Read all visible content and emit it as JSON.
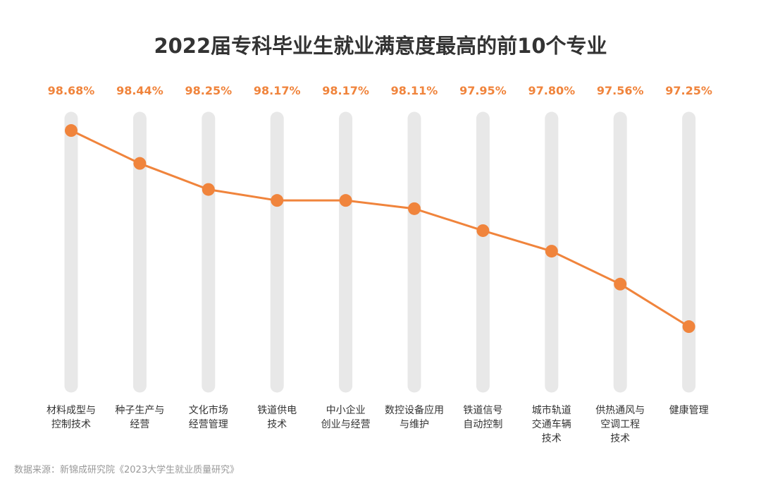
{
  "chart_data": {
    "type": "line",
    "title": "2022届专科毕业生就业满意度最高的前10个专业",
    "source": "数据来源：新锦成研究院《2023大学生就业质量研究》",
    "categories": [
      "材料成型与\n控制技术",
      "种子生产与\n经营",
      "文化市场\n经营管理",
      "铁道供电\n技术",
      "中小企业\n创业与经营",
      "数控设备应用\n与维护",
      "铁道信号\n自动控制",
      "城市轨道\n交通车辆\n技术",
      "供热通风与\n空调工程\n技术",
      "健康管理"
    ],
    "values": [
      98.68,
      98.44,
      98.25,
      98.17,
      98.17,
      98.11,
      97.95,
      97.8,
      97.56,
      97.25
    ],
    "value_labels": [
      "98.68%",
      "98.44%",
      "98.25%",
      "98.17%",
      "98.17%",
      "98.11%",
      "97.95%",
      "97.80%",
      "97.56%",
      "97.25%"
    ],
    "color": "#f0843c",
    "ylim": [
      96.8,
      98.8
    ]
  }
}
